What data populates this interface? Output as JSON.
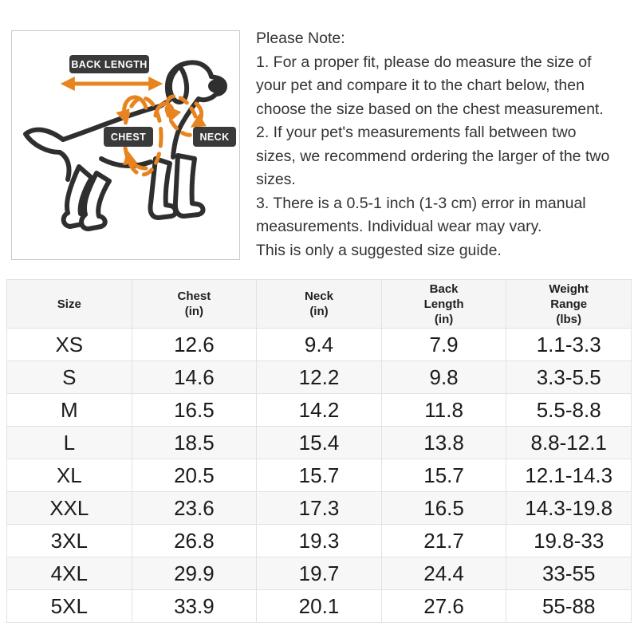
{
  "diagram": {
    "labels": {
      "back_length": "BACK LENGTH",
      "chest": "CHEST",
      "neck": "NECK"
    },
    "colors": {
      "accent": "#E8841F",
      "line": "#2F2F2F",
      "badge_bg": "#3A3A3A",
      "badge_text": "#FFFFFF"
    }
  },
  "note": {
    "heading": "Please Note:",
    "lines": [
      "1. For a proper fit, please do measure the size of",
      "your pet and compare it to the chart below, then",
      "choose the size based on the chest measurement.",
      "2. If your pet's measurements fall between two",
      "sizes, we recommend ordering the larger of the two",
      "sizes.",
      "3. There is a 0.5-1 inch (1-3 cm) error in manual",
      "measurements. Individual wear may vary.",
      "This is only a suggested size guide."
    ]
  },
  "chart_data": {
    "type": "table",
    "columns": [
      "Size",
      "Chest\n(in)",
      "Neck\n(in)",
      "Back\nLength\n(in)",
      "Weight\nRange\n(lbs)"
    ],
    "rows": [
      [
        "XS",
        "12.6",
        "9.4",
        "7.9",
        "1.1-3.3"
      ],
      [
        "S",
        "14.6",
        "12.2",
        "9.8",
        "3.3-5.5"
      ],
      [
        "M",
        "16.5",
        "14.2",
        "11.8",
        "5.5-8.8"
      ],
      [
        "L",
        "18.5",
        "15.4",
        "13.8",
        "8.8-12.1"
      ],
      [
        "XL",
        "20.5",
        "15.7",
        "15.7",
        "12.1-14.3"
      ],
      [
        "XXL",
        "23.6",
        "17.3",
        "16.5",
        "14.3-19.8"
      ],
      [
        "3XL",
        "26.8",
        "19.3",
        "21.7",
        "19.8-33"
      ],
      [
        "4XL",
        "29.9",
        "19.7",
        "24.4",
        "33-55"
      ],
      [
        "5XL",
        "33.9",
        "20.1",
        "27.6",
        "55-88"
      ]
    ]
  }
}
